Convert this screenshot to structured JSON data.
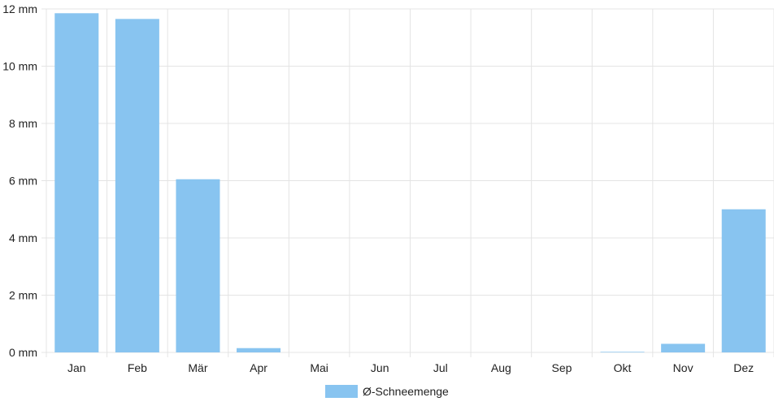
{
  "chart_data": {
    "type": "bar",
    "categories": [
      "Jan",
      "Feb",
      "Mär",
      "Apr",
      "Mai",
      "Jun",
      "Jul",
      "Aug",
      "Sep",
      "Okt",
      "Nov",
      "Dez"
    ],
    "series": [
      {
        "name": "Ø-Schneemenge",
        "values": [
          11.85,
          11.65,
          6.05,
          0.15,
          0,
          0,
          0,
          0,
          0,
          0.02,
          0.3,
          5.0
        ],
        "color": "#88c4f0"
      }
    ],
    "ylim": [
      0,
      12
    ],
    "yticks": [
      0,
      2,
      4,
      6,
      8,
      10,
      12
    ],
    "y_unit": "mm",
    "grid": true,
    "legend_position": "bottom-center"
  }
}
